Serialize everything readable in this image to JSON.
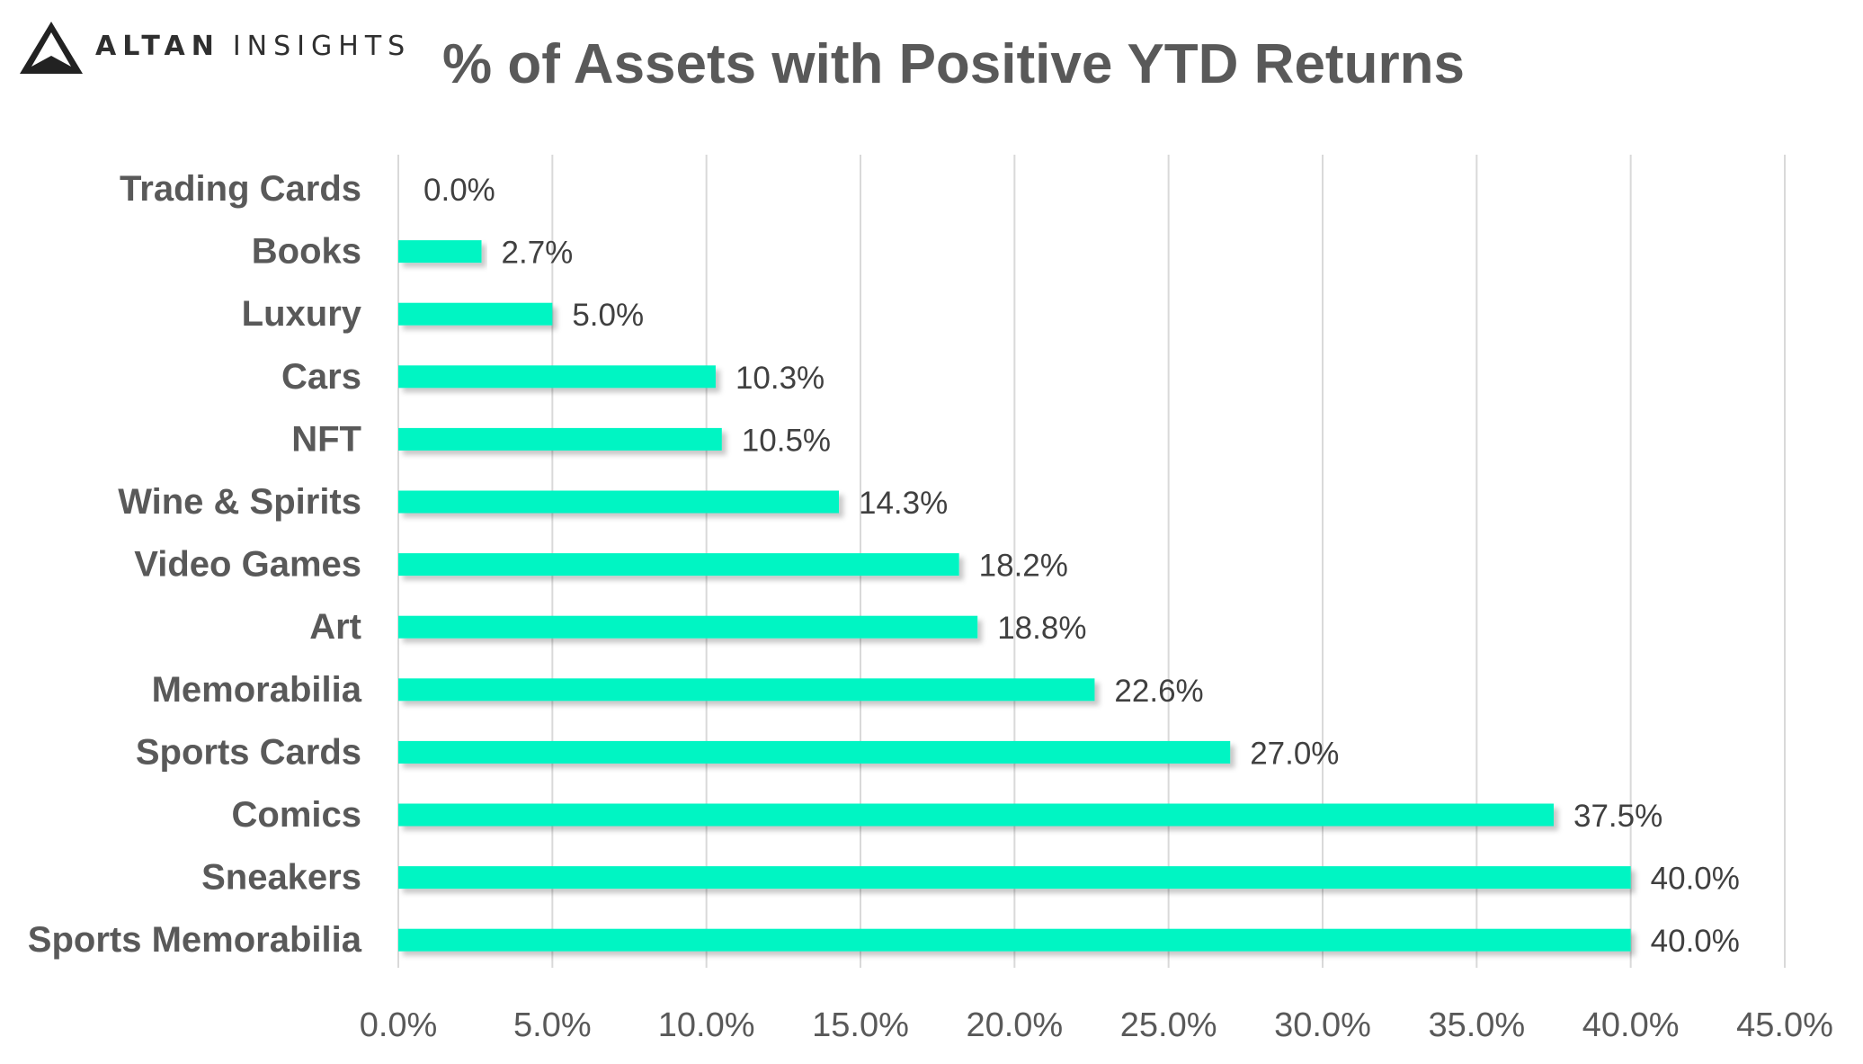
{
  "brand": {
    "primary_text": "ALTAN",
    "secondary_text": "INSIGHTS",
    "icon": "triangle-logo-icon"
  },
  "chart_data": {
    "type": "bar",
    "orientation": "horizontal",
    "title": "% of Assets with Positive YTD Returns",
    "xlabel": "",
    "ylabel": "",
    "categories": [
      "Trading Cards",
      "Books",
      "Luxury",
      "Cars",
      "NFT",
      "Wine & Spirits",
      "Video Games",
      "Art",
      "Memorabilia",
      "Sports Cards",
      "Comics",
      "Sneakers",
      "Sports Memorabilia"
    ],
    "values": [
      0.0,
      2.7,
      5.0,
      10.3,
      10.5,
      14.3,
      18.2,
      18.8,
      22.6,
      27.0,
      37.5,
      40.0,
      40.0
    ],
    "value_labels": [
      "0.0%",
      "2.7%",
      "5.0%",
      "10.3%",
      "10.5%",
      "14.3%",
      "18.2%",
      "18.8%",
      "22.6%",
      "27.0%",
      "37.5%",
      "40.0%",
      "40.0%"
    ],
    "xlim": [
      0,
      45
    ],
    "xticks": [
      0,
      5,
      10,
      15,
      20,
      25,
      30,
      35,
      40,
      45
    ],
    "xtick_labels": [
      "0.0%",
      "5.0%",
      "10.0%",
      "15.0%",
      "20.0%",
      "25.0%",
      "30.0%",
      "35.0%",
      "40.0%",
      "45.0%"
    ],
    "grid": true,
    "legend": "none",
    "colors": {
      "bar": "#00f5c3",
      "grid": "#d9d9d9",
      "text": "#595959",
      "title": "#595959"
    }
  }
}
